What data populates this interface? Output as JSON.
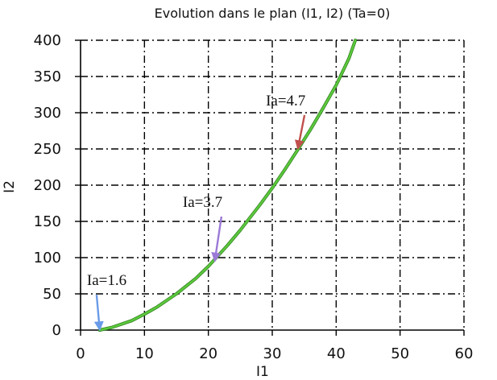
{
  "chart_data": {
    "type": "line",
    "title": "Evolution dans le plan (I1, I2) (Ta=0)",
    "xlabel": "I1",
    "ylabel": "I2",
    "xlim": [
      0,
      60
    ],
    "ylim": [
      0,
      400
    ],
    "xticks": [
      0,
      10,
      20,
      30,
      40,
      50,
      60
    ],
    "yticks": [
      0,
      50,
      100,
      150,
      200,
      250,
      300,
      350,
      400
    ],
    "grid": true,
    "grid_style": "dash-dot",
    "series": [
      {
        "color": "#5ac83c",
        "x": [
          3,
          5,
          8,
          10,
          12,
          15,
          18,
          20,
          23,
          25,
          28,
          30,
          32,
          34,
          36,
          38,
          40,
          42,
          43
        ],
        "y": [
          0,
          4,
          13,
          22,
          32,
          50,
          71,
          88,
          117,
          138,
          172,
          196,
          222,
          249,
          277,
          307,
          338,
          375,
          400
        ]
      }
    ],
    "annotations": [
      {
        "text": "Ia=4.7",
        "text_at": [
          29,
          310
        ],
        "point_at": [
          34,
          250
        ],
        "color": "#c0504d"
      },
      {
        "text": "Ia=3.7",
        "text_at": [
          16,
          170
        ],
        "point_at": [
          21,
          95
        ],
        "color": "#9b79d6"
      },
      {
        "text": "Ia=1.6",
        "text_at": [
          1,
          62
        ],
        "point_at": [
          3,
          0
        ],
        "color": "#6a9be8"
      }
    ]
  }
}
